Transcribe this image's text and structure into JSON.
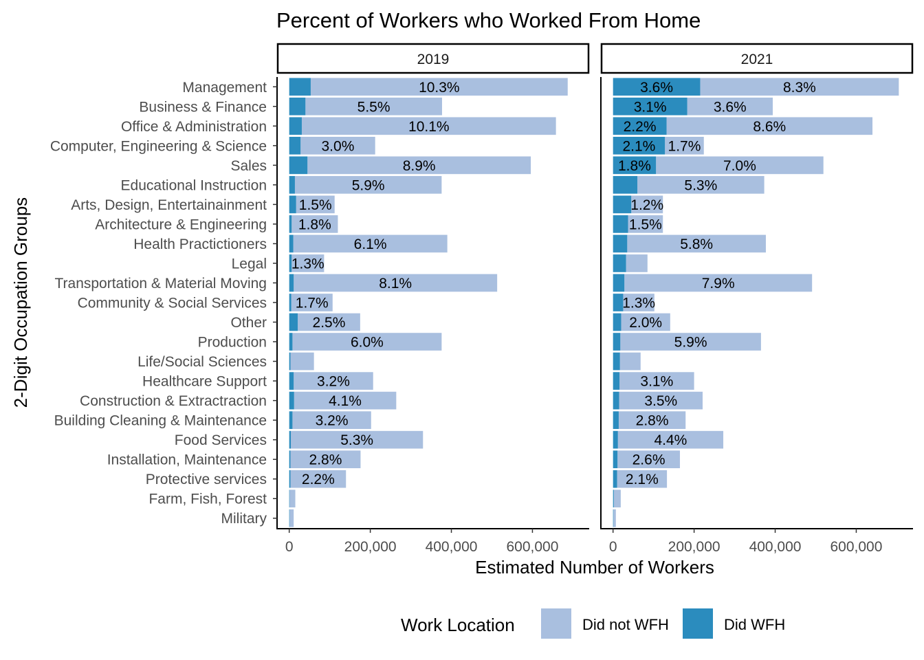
{
  "chart_data": {
    "type": "bar",
    "orientation": "horizontal",
    "stacked": true,
    "title": "Percent of Workers who Worked From Home",
    "xlabel": "Estimated Number of Workers",
    "ylabel": "2-Digit Occupation Groups",
    "xlim": [
      -30000,
      740000
    ],
    "x_ticks": [
      0,
      200000,
      400000,
      600000
    ],
    "x_tick_labels": [
      "0",
      "200,000",
      "400,000",
      "600,000"
    ],
    "categories": [
      "Management",
      "Business & Finance",
      "Office & Administration",
      "Computer, Engineering & Science",
      "Sales",
      "Educational Instruction",
      "Arts, Design, Entertainainment",
      "Architecture & Engineering",
      "Health Practictioners",
      "Legal",
      "Transportation & Material Moving",
      "Community & Social Services",
      "Other",
      "Production",
      "Life/Social Sciences",
      "Healthcare Support",
      "Construction & Extractraction",
      "Building Cleaning & Maintenance",
      "Food Services",
      "Installation, Maintenance",
      "Protective services",
      "Farm, Fish, Forest",
      "Military"
    ],
    "legend": {
      "title": "Work Location",
      "position": "bottom",
      "entries": [
        {
          "name": "Did not WFH",
          "color": "#a9bfdf"
        },
        {
          "name": "Did WFH",
          "color": "#2b8cbe"
        }
      ]
    },
    "panels": [
      {
        "label": "2019",
        "series": [
          {
            "name": "Did WFH",
            "values": [
              53000,
              40000,
              31000,
              28000,
              45000,
              14000,
              17000,
              6000,
              10000,
              6000,
              11000,
              5000,
              21000,
              8000,
              3000,
              11000,
              12000,
              8000,
              4000,
              3000,
              3000,
              1000,
              1000
            ]
          },
          {
            "name": "Did not WFH",
            "values": [
              634000,
              337000,
              627000,
              184000,
              551000,
              362000,
              95000,
              114000,
              380000,
              80000,
              502000,
              102000,
              154000,
              368000,
              58000,
              196000,
              252000,
              194000,
              326000,
              173000,
              137000,
              14000,
              10000
            ]
          }
        ],
        "labels": {
          "Did WFH": [
            "",
            "",
            "",
            "",
            "",
            "",
            "",
            "",
            "",
            "",
            "",
            "",
            "",
            "",
            "",
            "",
            "",
            "",
            "",
            "",
            "",
            "",
            ""
          ],
          "Did not WFH": [
            "10.3%",
            "5.5%",
            "10.1%",
            "3.0%",
            "8.9%",
            "5.9%",
            "1.5%",
            "1.8%",
            "6.1%",
            "1.3%",
            "8.1%",
            "1.7%",
            "2.5%",
            "6.0%",
            "",
            "3.2%",
            "4.1%",
            "3.2%",
            "5.3%",
            "2.8%",
            "2.2%",
            "",
            ""
          ]
        }
      },
      {
        "label": "2021",
        "series": [
          {
            "name": "Did WFH",
            "values": [
              215000,
              183000,
              132000,
              128000,
              106000,
              60000,
              45000,
              37000,
              35000,
              32000,
              28000,
              25000,
              20000,
              18000,
              17000,
              16000,
              15000,
              14000,
              12000,
              11000,
              10000,
              2000,
              1000
            ]
          },
          {
            "name": "Did not WFH",
            "values": [
              490000,
              211000,
              508000,
              96000,
              413000,
              313000,
              78000,
              86000,
              342000,
              53000,
              463000,
              77000,
              121000,
              347000,
              51000,
              184000,
              206000,
              165000,
              260000,
              154000,
              123000,
              17000,
              6000
            ]
          }
        ],
        "labels": {
          "Did WFH": [
            "3.6%",
            "3.1%",
            "2.2%",
            "2.1%",
            "1.8%",
            "",
            "",
            "",
            "",
            "",
            "",
            "",
            "",
            "",
            "",
            "",
            "",
            "",
            "",
            "",
            "",
            "",
            ""
          ],
          "Did not WFH": [
            "8.3%",
            "3.6%",
            "8.6%",
            "1.7%",
            "7.0%",
            "5.3%",
            "1.2%",
            "1.5%",
            "5.8%",
            "",
            "7.9%",
            "1.3%",
            "2.0%",
            "5.9%",
            "",
            "3.1%",
            "3.5%",
            "2.8%",
            "4.4%",
            "2.6%",
            "2.1%",
            "",
            ""
          ]
        }
      }
    ]
  }
}
